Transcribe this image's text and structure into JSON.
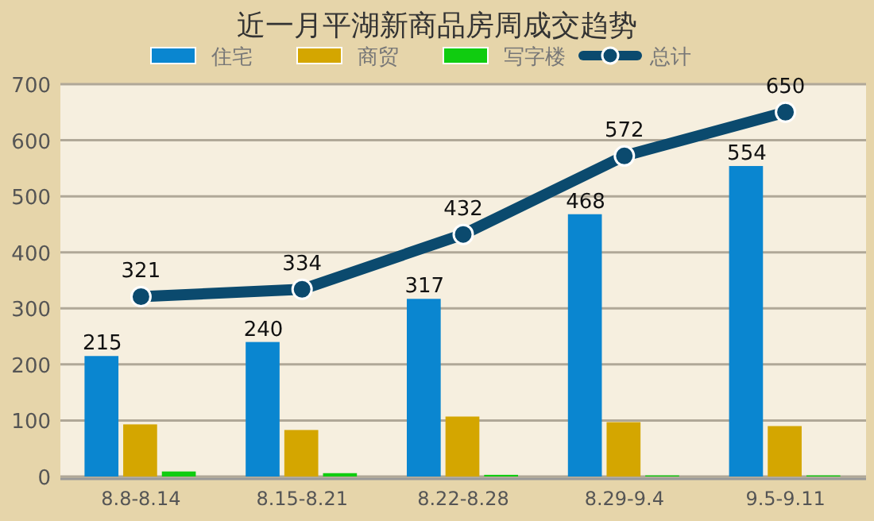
{
  "chart_data": {
    "type": "bar",
    "title": "近一月平湖新商品房周成交趋势",
    "categories": [
      "8.8-8.14",
      "8.15-8.21",
      "8.22-8.28",
      "8.29-9.4",
      "9.5-9.11"
    ],
    "series": [
      {
        "name": "住宅",
        "color": "#0a86d0",
        "values": [
          215,
          240,
          317,
          468,
          554
        ],
        "value_labels": [
          "215",
          "240",
          "317",
          "468",
          "554"
        ]
      },
      {
        "name": "商贸",
        "color": "#d4a600",
        "values": [
          93,
          83,
          107,
          97,
          90
        ]
      },
      {
        "name": "写字楼",
        "color": "#10cc10",
        "values": [
          9,
          6,
          3,
          2,
          2
        ]
      },
      {
        "name": "总计",
        "type": "line",
        "color": "#0b4a6e",
        "marker": "circle",
        "values": [
          321,
          334,
          432,
          572,
          650
        ],
        "value_labels": [
          "321",
          "334",
          "432",
          "572",
          "650"
        ]
      }
    ],
    "ylim": [
      0,
      700
    ],
    "yticks": [
      0,
      100,
      200,
      300,
      400,
      500,
      600,
      700
    ],
    "grid": "y",
    "legend": "top"
  }
}
